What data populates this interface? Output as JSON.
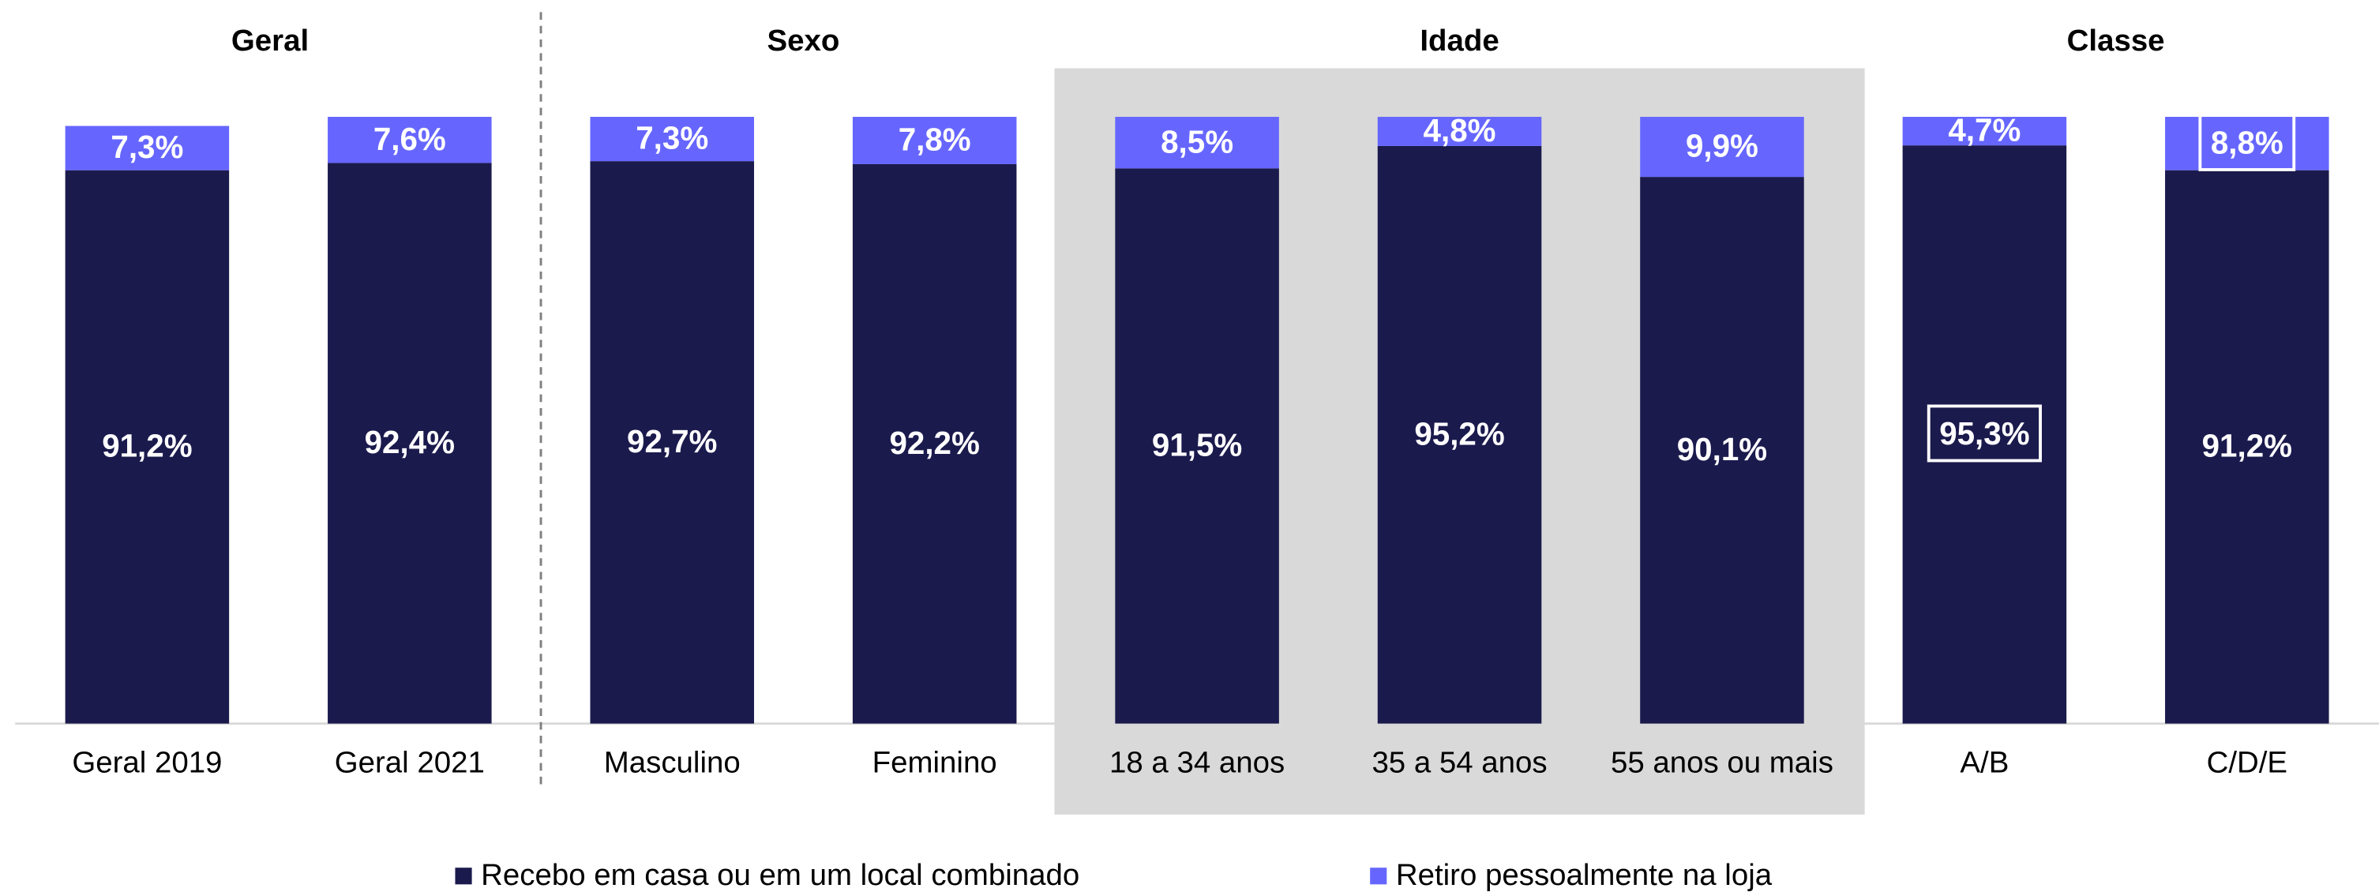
{
  "chart_data": {
    "type": "stacked_bar",
    "groups": [
      {
        "label": "Geral",
        "categories": [
          "Geral 2019",
          "Geral 2021"
        ],
        "divider_after": true
      },
      {
        "label": "Sexo",
        "categories": [
          "Masculino",
          "Feminino"
        ]
      },
      {
        "label": "Idade",
        "categories": [
          "18 a 34 anos",
          "35 a 54 anos",
          "55 anos ou mais"
        ],
        "shaded": true
      },
      {
        "label": "Classe",
        "categories": [
          "A/B",
          "C/D/E"
        ]
      }
    ],
    "series": [
      {
        "name": "Recebo em casa ou em um local combinado",
        "color": "#1b1a4d",
        "values": [
          91.2,
          92.4,
          92.7,
          92.2,
          91.5,
          95.2,
          90.1,
          95.3,
          91.2
        ],
        "value_labels": [
          "91,2%",
          "92,4%",
          "92,7%",
          "92,2%",
          "91,5%",
          "95,2%",
          "90,1%",
          "95,3%",
          "91,2%"
        ]
      },
      {
        "name": "Retiro pessoalmente na loja",
        "color": "#6666ff",
        "values": [
          7.3,
          7.6,
          7.3,
          7.8,
          8.5,
          4.8,
          9.9,
          4.7,
          8.8
        ],
        "value_labels": [
          "7,3%",
          "7,6%",
          "7,3%",
          "7,8%",
          "8,5%",
          "4,8%",
          "9,9%",
          "4,7%",
          "8,8%"
        ]
      }
    ],
    "ylim": [
      0,
      100
    ],
    "legend": "bottom"
  }
}
